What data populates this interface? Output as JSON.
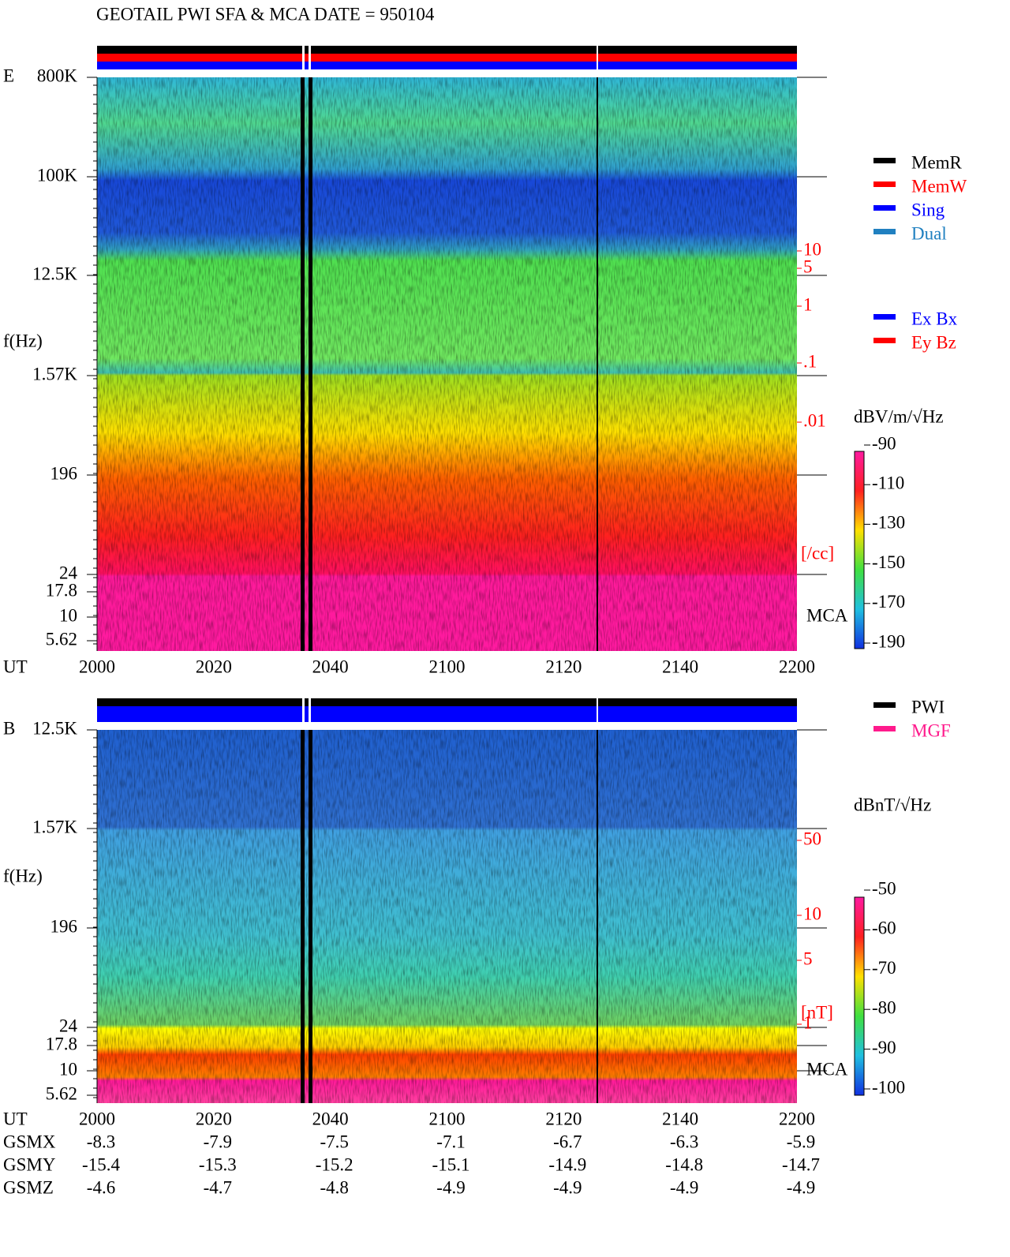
{
  "header": {
    "title": "GEOTAIL  PWI SFA & MCA   DATE = 950104"
  },
  "panel_e": {
    "label": "E",
    "y_label": "f(Hz)",
    "freq_ticks": [
      "800K",
      "100K",
      "12.5K",
      "1.57K",
      "196",
      "24",
      "17.8",
      "10",
      "5.62"
    ],
    "time_label": "UT",
    "time_ticks": [
      2000,
      2020,
      2040,
      2100,
      2120,
      2140,
      2200
    ],
    "density_ticks": [
      "10",
      "5",
      "1",
      ".1",
      ".01"
    ],
    "density_unit": "[/cc]",
    "mca_label": "MCA",
    "colorbar": {
      "unit": "dBV/m/√Hz",
      "ticks": [
        -90,
        -110,
        -130,
        -150,
        -170,
        -190
      ]
    }
  },
  "legend_mode": [
    {
      "label": "MemR",
      "color": "#000000"
    },
    {
      "label": "MemW",
      "color": "#ff0000"
    },
    {
      "label": "Sing",
      "color": "#0000ff"
    },
    {
      "label": "Dual",
      "color": "#2080c0"
    }
  ],
  "legend_axes": [
    {
      "label": "Ex Bx",
      "color": "#0000ff"
    },
    {
      "label": "Ey Bz",
      "color": "#ff0000"
    }
  ],
  "panel_b": {
    "label": "B",
    "y_label": "f(Hz)",
    "freq_ticks": [
      "12.5K",
      "1.57K",
      "196",
      "24",
      "17.8",
      "10",
      "5.62"
    ],
    "time_label": "UT",
    "time_ticks": [
      2000,
      2020,
      2040,
      2100,
      2120,
      2140,
      2200
    ],
    "density_ticks": [
      "50",
      "10",
      "5",
      "1"
    ],
    "density_unit": "[nT]",
    "mca_label": "MCA",
    "colorbar": {
      "unit": "dBnT/√Hz",
      "ticks": [
        -50,
        -60,
        -70,
        -80,
        -90,
        -100
      ]
    }
  },
  "legend_b": [
    {
      "label": "PWI",
      "color": "#000000"
    },
    {
      "label": "MGF",
      "color": "#ff1a8c"
    }
  ],
  "orbit": {
    "rows": [
      {
        "label": "GSMX",
        "values": [
          -8.3,
          -7.9,
          -7.5,
          -7.1,
          -6.7,
          -6.3,
          -5.9
        ]
      },
      {
        "label": "GSMY",
        "values": [
          -15.4,
          -15.3,
          -15.2,
          -15.1,
          -14.9,
          -14.8,
          -14.7
        ]
      },
      {
        "label": "GSMZ",
        "values": [
          -4.6,
          -4.7,
          -4.8,
          -4.9,
          -4.9,
          -4.9,
          -4.9
        ]
      }
    ]
  }
}
